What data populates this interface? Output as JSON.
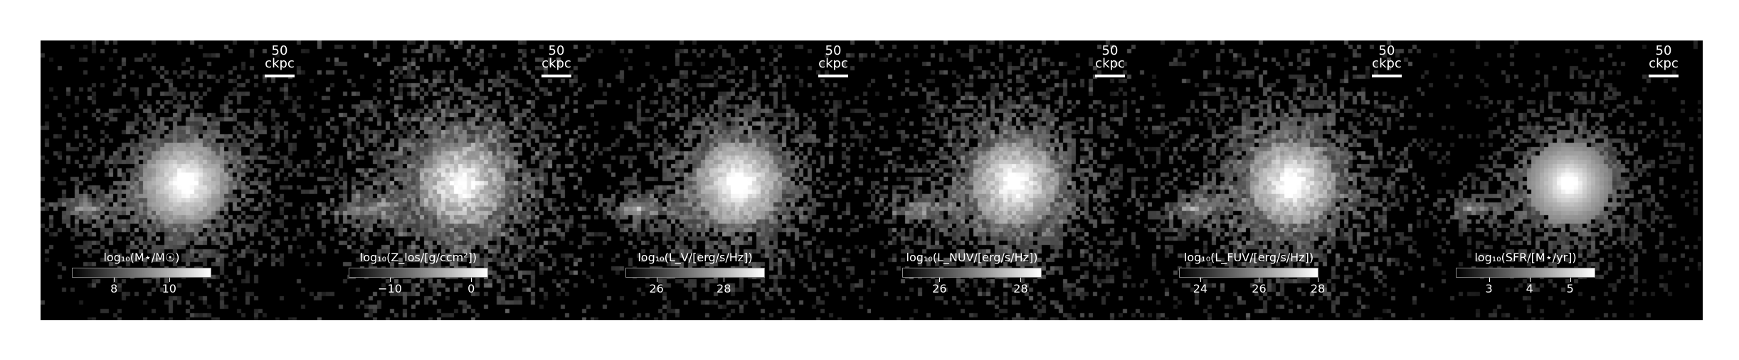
{
  "scale_bar_label": "50 ckpc",
  "colormap": [
    "#000000",
    "#ffffff"
  ],
  "panels": [
    {
      "quantity": "stellar mass",
      "colorbar_label": "log₁₀(M⋆/M☉)",
      "vmin": 6.5,
      "vmax": 11.5,
      "ticks": [
        {
          "value": 8,
          "label": "8"
        },
        {
          "value": 10,
          "label": "10"
        }
      ],
      "filled_fraction": 0.35,
      "core_brightness": 1.0
    },
    {
      "quantity": "metal surface density",
      "colorbar_label": "log₁₀(Z_los/[g/ccm²])",
      "vmin": -15,
      "vmax": 2,
      "ticks": [
        {
          "value": -10,
          "label": "−10"
        },
        {
          "value": 0,
          "label": "0"
        }
      ],
      "filled_fraction": 0.75,
      "core_brightness": 0.85
    },
    {
      "quantity": "V-band luminosity",
      "colorbar_label": "log₁₀(L_V/[erg/s/Hz])",
      "vmin": 25.1,
      "vmax": 29.2,
      "ticks": [
        {
          "value": 26,
          "label": "26"
        },
        {
          "value": 28,
          "label": "28"
        }
      ],
      "filled_fraction": 0.45,
      "core_brightness": 1.0
    },
    {
      "quantity": "NUV luminosity",
      "colorbar_label": "log₁₀(L_NUV/[erg/s/Hz])",
      "vmin": 25.1,
      "vmax": 28.5,
      "ticks": [
        {
          "value": 26,
          "label": "26"
        },
        {
          "value": 28,
          "label": "28"
        }
      ],
      "filled_fraction": 0.55,
      "core_brightness": 0.95
    },
    {
      "quantity": "FUV luminosity",
      "colorbar_label": "log₁₀(L_FUV/[erg/s/Hz])",
      "vmin": 23.3,
      "vmax": 28,
      "ticks": [
        {
          "value": 24,
          "label": "24"
        },
        {
          "value": 26,
          "label": "26"
        },
        {
          "value": 28,
          "label": "28"
        }
      ],
      "filled_fraction": 0.55,
      "core_brightness": 0.95
    },
    {
      "quantity": "star formation rate",
      "colorbar_label": "log₁₀(SFR/[M⋆/yr])",
      "vmin": 2.2,
      "vmax": 5.6,
      "ticks": [
        {
          "value": 3,
          "label": "3"
        },
        {
          "value": 4,
          "label": "4"
        },
        {
          "value": 5,
          "label": "5"
        }
      ],
      "filled_fraction": 0.1,
      "core_brightness": 1.0
    }
  ]
}
